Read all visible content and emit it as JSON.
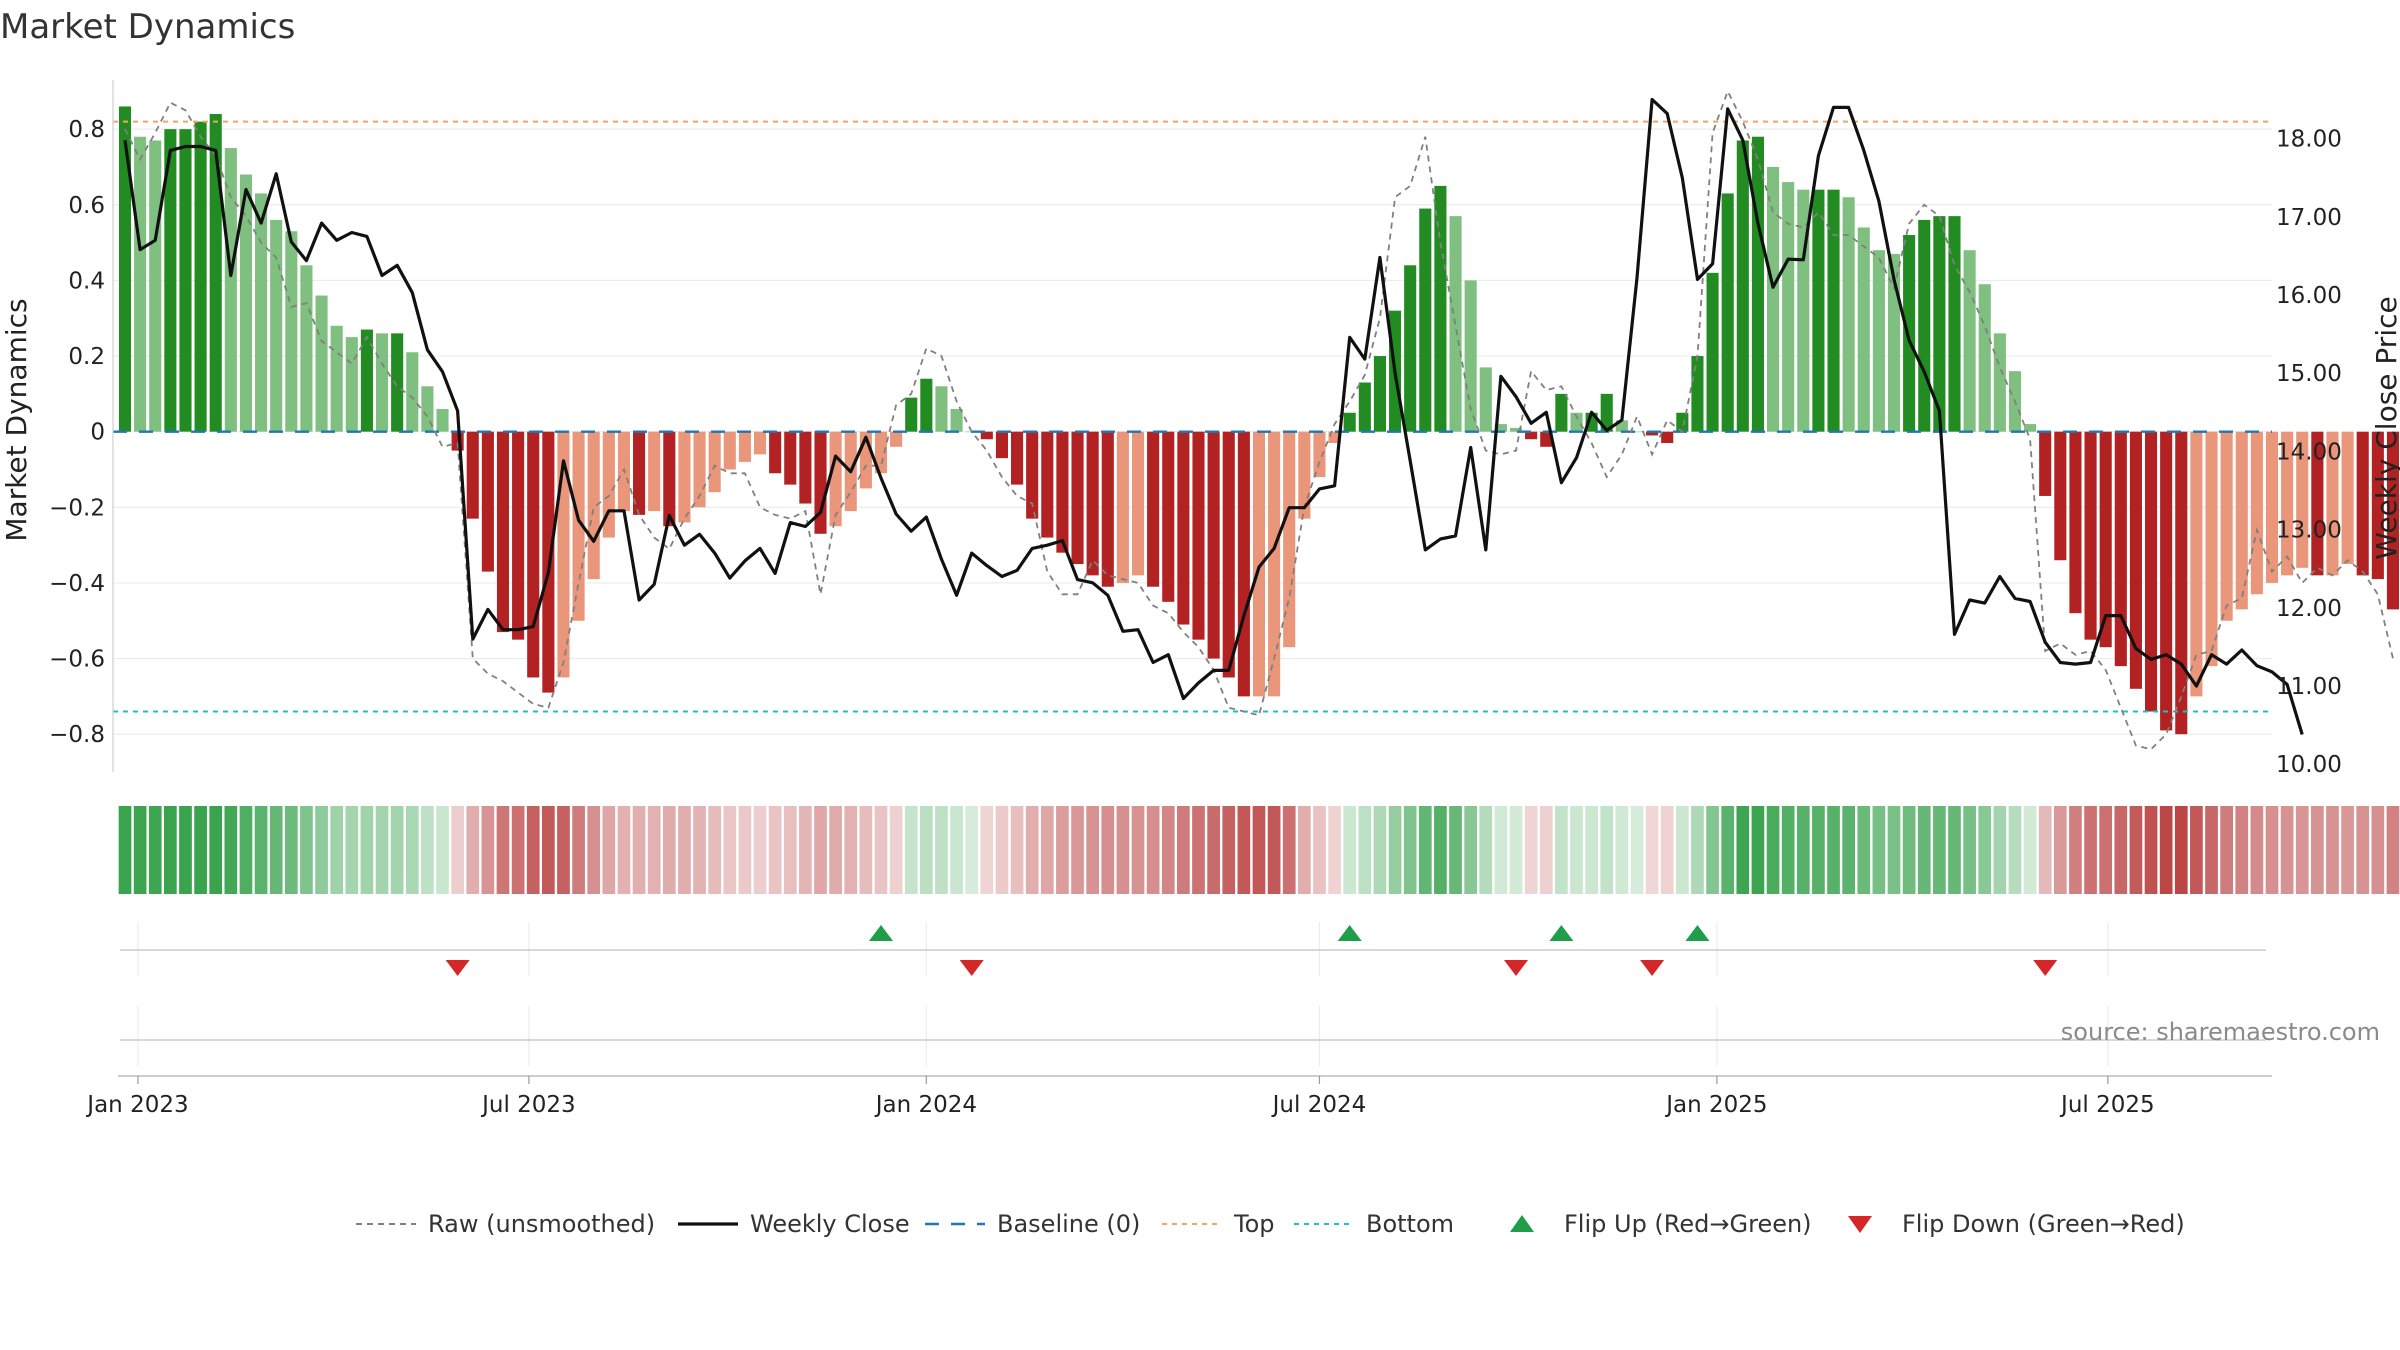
{
  "chart_data": {
    "type": "bar",
    "title": "Market Dynamics",
    "ylabel_left": "Market Dynamics",
    "ylabel_right": "Weekly Close Price",
    "left_ylim": [
      -0.9,
      0.93
    ],
    "left_ticks": [
      0.8,
      0.6,
      0.4,
      0.2,
      0,
      -0.2,
      -0.4,
      -0.6,
      -0.8
    ],
    "left_tick_labels": [
      "0.8",
      "0.6",
      "0.4",
      "0.2",
      "0",
      "−0.2",
      "−0.4",
      "−0.6",
      "−0.8"
    ],
    "right_ylim": [
      9.9,
      18.75
    ],
    "right_ticks": [
      18,
      17,
      16,
      15,
      14,
      13,
      12,
      11,
      10
    ],
    "right_tick_labels": [
      "18.00",
      "17.00",
      "16.00",
      "15.00",
      "14.00",
      "13.00",
      "12.00",
      "11.00",
      "10.00"
    ],
    "x_start": "2022-12-26",
    "x_end": "2025-09-15",
    "x_ticks": [
      "2023-01-01",
      "2023-07-01",
      "2024-01-01",
      "2024-07-01",
      "2025-01-01",
      "2025-07-01"
    ],
    "x_tick_labels": [
      "Jan 2023",
      "Jul 2023",
      "Jan 2024",
      "Jul 2024",
      "Jan 2025",
      "Jul 2025"
    ],
    "grid": true,
    "legend_position": "bottom",
    "top_level": 0.82,
    "bottom_level": -0.74,
    "colors": {
      "strong_green": "#228b22",
      "light_green": "#7fbf7f",
      "strong_red": "#b22222",
      "light_red": "#e9967a",
      "close": "#111111",
      "raw": "#808080",
      "baseline": "#1f77b4",
      "top": "#f4a460",
      "bottom": "#20c0c0",
      "flip_up": "#1f9e4a",
      "flip_down": "#d62728"
    },
    "series": [
      {
        "name": "Market Dynamics",
        "values": [
          0.86,
          0.78,
          0.77,
          0.8,
          0.8,
          0.82,
          0.84,
          0.75,
          0.68,
          0.63,
          0.56,
          0.53,
          0.44,
          0.36,
          0.28,
          0.25,
          0.27,
          0.26,
          0.26,
          0.21,
          0.12,
          0.06,
          -0.05,
          -0.23,
          -0.37,
          -0.53,
          -0.55,
          -0.65,
          -0.69,
          -0.65,
          -0.5,
          -0.39,
          -0.28,
          -0.21,
          -0.22,
          -0.21,
          -0.25,
          -0.24,
          -0.2,
          -0.16,
          -0.1,
          -0.08,
          -0.06,
          -0.11,
          -0.14,
          -0.19,
          -0.27,
          -0.25,
          -0.21,
          -0.15,
          -0.11,
          -0.04,
          0.09,
          0.14,
          0.12,
          0.06,
          0.0,
          -0.02,
          -0.07,
          -0.14,
          -0.23,
          -0.28,
          -0.32,
          -0.35,
          -0.38,
          -0.41,
          -0.4,
          -0.38,
          -0.41,
          -0.45,
          -0.51,
          -0.55,
          -0.6,
          -0.65,
          -0.7,
          -0.7,
          -0.7,
          -0.57,
          -0.23,
          -0.12,
          -0.03,
          0.05,
          0.13,
          0.2,
          0.32,
          0.44,
          0.59,
          0.65,
          0.57,
          0.4,
          0.17,
          0.02,
          0.01,
          -0.02,
          -0.04,
          0.1,
          0.05,
          0.05,
          0.1,
          0.03,
          0.0,
          -0.01,
          -0.03,
          0.05,
          0.2,
          0.42,
          0.63,
          0.77,
          0.78,
          0.7,
          0.66,
          0.64,
          0.64,
          0.64,
          0.62,
          0.54,
          0.48,
          0.47,
          0.52,
          0.56,
          0.57,
          0.57,
          0.48,
          0.39,
          0.26,
          0.16,
          0.02,
          -0.17,
          -0.34,
          -0.48,
          -0.55,
          -0.57,
          -0.62,
          -0.68,
          -0.74,
          -0.79,
          -0.8,
          -0.7,
          -0.62,
          -0.5,
          -0.47,
          -0.43,
          -0.4,
          -0.38,
          -0.36,
          -0.38,
          -0.38,
          -0.35,
          -0.38,
          -0.39,
          -0.47
        ]
      },
      {
        "name": "Raw (unsmoothed)",
        "values": [
          0.8,
          0.72,
          0.79,
          0.87,
          0.85,
          0.78,
          0.73,
          0.62,
          0.57,
          0.5,
          0.46,
          0.33,
          0.34,
          0.24,
          0.21,
          0.18,
          0.25,
          0.18,
          0.12,
          0.09,
          0.04,
          -0.04,
          -0.03,
          -0.6,
          -0.64,
          -0.66,
          -0.69,
          -0.72,
          -0.73,
          -0.61,
          -0.4,
          -0.2,
          -0.17,
          -0.1,
          -0.22,
          -0.28,
          -0.31,
          -0.23,
          -0.17,
          -0.09,
          -0.11,
          -0.11,
          -0.2,
          -0.22,
          -0.23,
          -0.21,
          -0.43,
          -0.22,
          -0.16,
          -0.09,
          -0.09,
          0.07,
          0.1,
          0.22,
          0.2,
          0.08,
          0.0,
          -0.05,
          -0.12,
          -0.17,
          -0.19,
          -0.37,
          -0.43,
          -0.43,
          -0.34,
          -0.38,
          -0.39,
          -0.4,
          -0.46,
          -0.48,
          -0.53,
          -0.57,
          -0.63,
          -0.73,
          -0.74,
          -0.75,
          -0.6,
          -0.44,
          -0.2,
          -0.08,
          0.02,
          0.08,
          0.15,
          0.3,
          0.62,
          0.65,
          0.78,
          0.5,
          0.28,
          0.06,
          -0.05,
          -0.06,
          -0.05,
          0.16,
          0.11,
          0.12,
          0.04,
          -0.03,
          -0.12,
          -0.06,
          0.04,
          -0.06,
          0.03,
          0.0,
          0.2,
          0.79,
          0.9,
          0.82,
          0.72,
          0.58,
          0.55,
          0.54,
          0.58,
          0.52,
          0.52,
          0.49,
          0.46,
          0.38,
          0.55,
          0.6,
          0.57,
          0.44,
          0.37,
          0.28,
          0.17,
          0.08,
          -0.02,
          -0.58,
          -0.56,
          -0.59,
          -0.58,
          -0.63,
          -0.73,
          -0.83,
          -0.84,
          -0.8,
          -0.7,
          -0.59,
          -0.58,
          -0.46,
          -0.44,
          -0.26,
          -0.37,
          -0.33,
          -0.4,
          -0.36,
          -0.38,
          -0.34,
          -0.37,
          -0.43,
          -0.6
        ]
      },
      {
        "name": "Weekly Close",
        "values": [
          17.98,
          16.58,
          16.7,
          17.85,
          17.9,
          17.9,
          17.85,
          16.25,
          17.35,
          16.92,
          17.55,
          16.68,
          16.44,
          16.92,
          16.7,
          16.8,
          16.75,
          16.25,
          16.38,
          16.03,
          15.3,
          15.02,
          14.52,
          11.6,
          11.98,
          11.72,
          11.72,
          11.76,
          12.45,
          13.88,
          13.12,
          12.85,
          13.24,
          13.24,
          12.1,
          12.3,
          13.18,
          12.8,
          12.94,
          12.7,
          12.38,
          12.6,
          12.76,
          12.44,
          13.09,
          13.04,
          13.22,
          13.94,
          13.74,
          14.18,
          13.66,
          13.2,
          12.98,
          13.16,
          12.62,
          12.16,
          12.7,
          12.54,
          12.4,
          12.48,
          12.76,
          12.8,
          12.86,
          12.36,
          12.32,
          12.16,
          11.7,
          11.72,
          11.3,
          11.4,
          10.84,
          11.04,
          11.2,
          11.2,
          11.9,
          12.52,
          12.76,
          13.28,
          13.28,
          13.52,
          13.56,
          15.46,
          15.18,
          16.48,
          15.0,
          13.88,
          12.74,
          12.88,
          12.92,
          14.05,
          12.74,
          14.96,
          14.7,
          14.36,
          14.5,
          13.6,
          13.92,
          14.5,
          14.27,
          14.4,
          16.22,
          18.5,
          18.32,
          17.5,
          16.2,
          16.4,
          18.38,
          17.98,
          16.92,
          16.1,
          16.46,
          16.45,
          17.78,
          18.4,
          18.4,
          17.85,
          17.2,
          16.2,
          15.42,
          15.02,
          14.52,
          11.66,
          12.1,
          12.06,
          12.4,
          12.12,
          12.08,
          11.56,
          11.3,
          11.28,
          11.3,
          11.9,
          11.9,
          11.48,
          11.34,
          11.4,
          11.28,
          11.0,
          11.4,
          11.28,
          11.46,
          11.26,
          11.18,
          11.02,
          10.38
        ]
      }
    ],
    "flip_up_weeks": [
      50,
      81,
      95,
      104
    ],
    "flip_down_weeks": [
      22,
      56,
      92,
      101,
      127
    ],
    "legend": [
      "Raw (unsmoothed)",
      "Weekly Close",
      "Baseline (0)",
      "Top",
      "Bottom",
      "Flip Up (Red→Green)",
      "Flip Down (Green→Red)"
    ]
  },
  "source_text": "source: sharemaestro.com"
}
